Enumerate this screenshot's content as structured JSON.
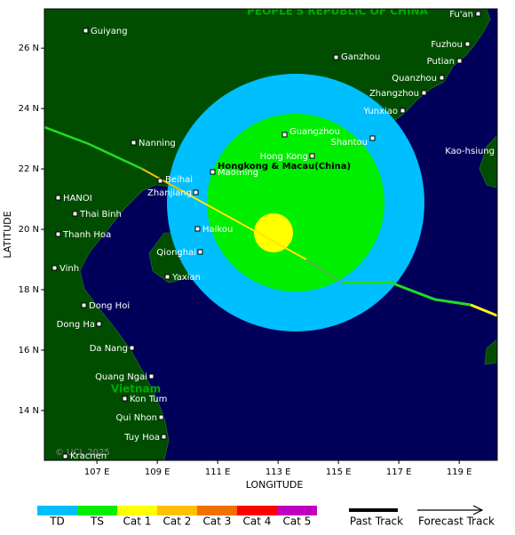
{
  "map": {
    "region_label_top": "PEOPLE'S REPUBLIC OF CHINA",
    "country_label": "Vietnam",
    "region_label": "Hongkong & Macau(China)",
    "copyright": "© UCL 2025",
    "x_axis_label": "LONGITUDE",
    "y_axis_label": "LATITUDE",
    "xlim": [
      105.26,
      120.26
    ],
    "ylim": [
      12.35,
      27.3
    ],
    "xticks": [
      {
        "value": 107,
        "label": "107 E"
      },
      {
        "value": 109,
        "label": "109 E"
      },
      {
        "value": 111,
        "label": "111 E"
      },
      {
        "value": 113,
        "label": "113 E"
      },
      {
        "value": 115,
        "label": "115 E"
      },
      {
        "value": 117,
        "label": "117 E"
      },
      {
        "value": 119,
        "label": "119 E"
      }
    ],
    "yticks": [
      {
        "value": 14,
        "label": "14 N"
      },
      {
        "value": 16,
        "label": "16 N"
      },
      {
        "value": 18,
        "label": "18 N"
      },
      {
        "value": 20,
        "label": "20 N"
      },
      {
        "value": 22,
        "label": "22 N"
      },
      {
        "value": 24,
        "label": "24 N"
      },
      {
        "value": 26,
        "label": "26 N"
      }
    ],
    "places": [
      "Fu'an",
      "Guiyang",
      "Ganzhou",
      "Fuzhou",
      "Putian",
      "Quanzhou",
      "Zhangzhou",
      "Yunxiao",
      "Kao-hsiung",
      "Nanning",
      "Guangzhou",
      "Shantou",
      "Hong Kong",
      "Maoming",
      "Beihai",
      "Zhanjiang",
      "HANOI",
      "Thai Binh",
      "Haikou",
      "Thanh Hoa",
      "Qionghai",
      "Yaxian",
      "Vinh",
      "Dong Hoi",
      "Dong Ha",
      "Da Nang",
      "Quang Ngai",
      "Kon Tum",
      "Qui Nhon",
      "Tuy Hoa",
      "Kracnen"
    ]
  },
  "legend": {
    "categories": [
      {
        "label": "TD",
        "color": "#00bfff"
      },
      {
        "label": "TS",
        "color": "#00ee00"
      },
      {
        "label": "Cat 1",
        "color": "#ffff00"
      },
      {
        "label": "Cat 2",
        "color": "#ffc000"
      },
      {
        "label": "Cat 3",
        "color": "#f07000"
      },
      {
        "label": "Cat 4",
        "color": "#ff0000"
      },
      {
        "label": "Cat 5",
        "color": "#c000c0"
      }
    ],
    "past_track": "Past Track",
    "forecast_track": "Forecast Track"
  }
}
